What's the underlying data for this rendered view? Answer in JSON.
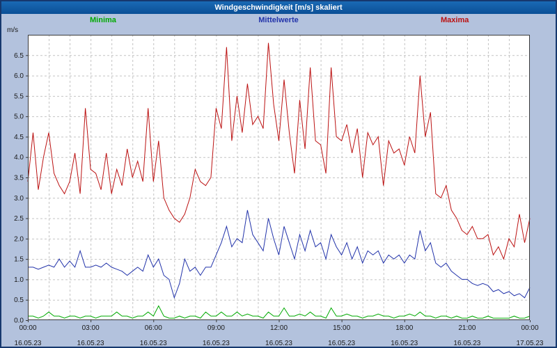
{
  "window": {
    "title": "Windgeschwindigkeit [m/s] skaliert"
  },
  "axis": {
    "unit_label": "m/s"
  },
  "colors": {
    "window_background": "#b3c2dd",
    "title_bar": "#0e5aa7",
    "outer_border": "#16386e",
    "plot_background": "#ffffff",
    "gridline": "#c4c4c4",
    "minima": "#00aa00",
    "mittelwerte": "#2233aa",
    "maxima": "#bb1111"
  },
  "chart_data": {
    "type": "line",
    "title": "Windgeschwindigkeit [m/s] skaliert",
    "ylabel": "m/s",
    "ylim": [
      0,
      7
    ],
    "y_tick_step": 0.5,
    "y_tick_labels": [
      "0.0",
      "0.5",
      "1.0",
      "1.5",
      "2.0",
      "2.5",
      "3.0",
      "3.5",
      "4.0",
      "4.5",
      "5.0",
      "5.5",
      "6.0",
      "6.5"
    ],
    "x_tick_hours": [
      0,
      3,
      6,
      9,
      12,
      15,
      18,
      21,
      24
    ],
    "x_tick_times": [
      "00:00",
      "03:00",
      "06:00",
      "09:00",
      "12:00",
      "15:00",
      "18:00",
      "21:00",
      "00:00"
    ],
    "x_tick_dates": [
      "16.05.23",
      "16.05.23",
      "16.05.23",
      "16.05.23",
      "16.05.23",
      "16.05.23",
      "16.05.23",
      "16.05.23",
      "17.05.23"
    ],
    "x_gridline_every_hours": 1,
    "x_start_hour": 0,
    "x_step_hours": 0.25,
    "grid": true,
    "legend_position": "top",
    "series": [
      {
        "name": "Minima",
        "color": "#00aa00",
        "values": [
          0.1,
          0.1,
          0.05,
          0.1,
          0.2,
          0.1,
          0.1,
          0.05,
          0.1,
          0.1,
          0.05,
          0.1,
          0.1,
          0.05,
          0.1,
          0.1,
          0.1,
          0.2,
          0.1,
          0.1,
          0.05,
          0.1,
          0.1,
          0.2,
          0.1,
          0.35,
          0.1,
          0.05,
          0.05,
          0.1,
          0.05,
          0.1,
          0.1,
          0.05,
          0.2,
          0.1,
          0.1,
          0.2,
          0.1,
          0.1,
          0.2,
          0.1,
          0.15,
          0.1,
          0.1,
          0.05,
          0.2,
          0.1,
          0.1,
          0.3,
          0.1,
          0.1,
          0.15,
          0.1,
          0.2,
          0.1,
          0.1,
          0.05,
          0.3,
          0.1,
          0.1,
          0.15,
          0.1,
          0.1,
          0.05,
          0.1,
          0.1,
          0.15,
          0.1,
          0.1,
          0.05,
          0.1,
          0.1,
          0.15,
          0.1,
          0.2,
          0.1,
          0.1,
          0.05,
          0.1,
          0.1,
          0.05,
          0.1,
          0.05,
          0.05,
          0.1,
          0.05,
          0.05,
          0.1,
          0.05,
          0.05,
          0.05,
          0.05,
          0.1,
          0.05,
          0.05,
          0.1
        ]
      },
      {
        "name": "Mittelwerte",
        "color": "#2233aa",
        "values": [
          1.3,
          1.3,
          1.25,
          1.3,
          1.35,
          1.3,
          1.5,
          1.3,
          1.45,
          1.3,
          1.7,
          1.3,
          1.3,
          1.35,
          1.3,
          1.4,
          1.3,
          1.25,
          1.2,
          1.1,
          1.2,
          1.3,
          1.2,
          1.6,
          1.3,
          1.5,
          1.1,
          1.0,
          0.55,
          0.9,
          1.5,
          1.2,
          1.3,
          1.1,
          1.3,
          1.3,
          1.6,
          1.9,
          2.3,
          1.8,
          2.0,
          1.9,
          2.7,
          2.1,
          1.9,
          1.7,
          2.5,
          2.0,
          1.6,
          2.3,
          1.9,
          1.5,
          2.1,
          1.7,
          2.2,
          1.8,
          1.9,
          1.5,
          2.1,
          1.8,
          1.6,
          1.9,
          1.5,
          1.8,
          1.4,
          1.7,
          1.6,
          1.7,
          1.4,
          1.6,
          1.5,
          1.6,
          1.4,
          1.6,
          1.5,
          2.2,
          1.7,
          1.9,
          1.4,
          1.3,
          1.4,
          1.2,
          1.1,
          1.0,
          1.0,
          0.9,
          0.85,
          0.9,
          0.85,
          0.7,
          0.75,
          0.65,
          0.7,
          0.6,
          0.65,
          0.55,
          0.8
        ]
      },
      {
        "name": "Maxima",
        "color": "#bb1111",
        "values": [
          3.4,
          4.6,
          3.2,
          4.0,
          4.6,
          3.6,
          3.3,
          3.1,
          3.4,
          4.1,
          3.1,
          5.2,
          3.7,
          3.6,
          3.2,
          4.1,
          3.1,
          3.7,
          3.3,
          4.2,
          3.5,
          3.9,
          3.4,
          5.2,
          3.4,
          4.4,
          3.0,
          2.7,
          2.5,
          2.4,
          2.6,
          3.0,
          3.7,
          3.4,
          3.3,
          3.5,
          5.2,
          4.7,
          6.7,
          4.4,
          5.5,
          4.6,
          5.8,
          4.8,
          5.0,
          4.7,
          6.8,
          5.3,
          4.4,
          5.9,
          4.6,
          3.6,
          5.4,
          4.2,
          6.2,
          4.4,
          4.3,
          3.6,
          6.2,
          4.5,
          4.4,
          4.8,
          4.1,
          4.7,
          3.5,
          4.6,
          4.3,
          4.5,
          3.3,
          4.4,
          4.1,
          4.2,
          3.8,
          4.5,
          4.1,
          6.0,
          4.5,
          5.1,
          3.1,
          3.0,
          3.3,
          2.7,
          2.5,
          2.2,
          2.1,
          2.3,
          2.0,
          2.0,
          2.1,
          1.6,
          1.8,
          1.5,
          2.0,
          1.8,
          2.6,
          1.9,
          2.5
        ]
      }
    ]
  }
}
